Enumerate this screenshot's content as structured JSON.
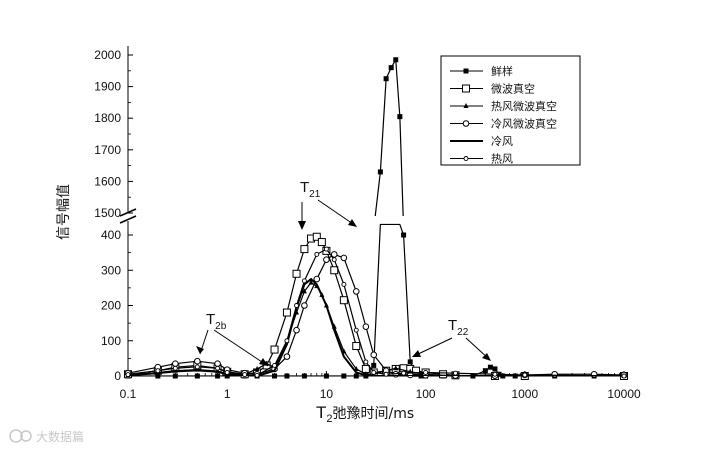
{
  "chart_data": {
    "type": "line",
    "xlabel_main": "T",
    "xlabel_sub": "2",
    "xlabel_rest": "弛豫时间/ms",
    "ylabel": "信号幅值",
    "x_scale": "log",
    "xlim": [
      0.1,
      10000
    ],
    "x_ticks": [
      "0.1",
      "1",
      "10",
      "100",
      "1000",
      "10000"
    ],
    "y_axis_break": true,
    "ylim_lower": [
      0,
      450
    ],
    "ylim_upper": [
      1500,
      2000
    ],
    "y_ticks_lower": [
      "0",
      "100",
      "200",
      "300",
      "400"
    ],
    "y_ticks_upper": [
      "1500",
      "1600",
      "1700",
      "1800",
      "1900",
      "2000"
    ],
    "legend_position": "top-right",
    "annotations": [
      {
        "label": "T",
        "sub": "2b"
      },
      {
        "label": "T",
        "sub": "21"
      },
      {
        "label": "T",
        "sub": "22"
      }
    ],
    "series": [
      {
        "name": "鲜样",
        "marker": "filled-square",
        "x": [
          0.1,
          0.2,
          0.3,
          0.5,
          0.8,
          1,
          1.5,
          2,
          3,
          4,
          6,
          10,
          15,
          20,
          25,
          30,
          35,
          40,
          45,
          50,
          55,
          60,
          70,
          80,
          90,
          100,
          150,
          200,
          300,
          400,
          450,
          500,
          550,
          600,
          800,
          1000,
          2000,
          5000,
          10000
        ],
        "y": [
          0,
          0,
          0,
          0,
          0,
          0,
          0,
          0,
          0,
          0,
          0,
          0,
          0,
          0,
          0,
          30,
          1630,
          1925,
          1960,
          1985,
          1805,
          400,
          40,
          5,
          0,
          0,
          0,
          0,
          0,
          15,
          25,
          20,
          5,
          0,
          0,
          0,
          0,
          0,
          0
        ]
      },
      {
        "name": "微波真空",
        "marker": "open-square",
        "x": [
          0.1,
          0.2,
          0.3,
          0.5,
          0.8,
          1,
          1.5,
          2,
          2.5,
          3,
          4,
          5,
          6,
          7,
          8,
          9,
          10,
          12,
          15,
          20,
          25,
          30,
          40,
          50,
          60,
          70,
          80,
          100,
          150,
          200,
          500,
          1000,
          10000
        ],
        "y": [
          5,
          15,
          25,
          30,
          22,
          12,
          5,
          10,
          30,
          75,
          180,
          290,
          360,
          390,
          395,
          380,
          355,
          300,
          215,
          85,
          20,
          10,
          15,
          20,
          22,
          20,
          15,
          10,
          5,
          2,
          0,
          0,
          0
        ]
      },
      {
        "name": "热风微波真空",
        "marker": "triangle",
        "x": [
          0.1,
          0.2,
          0.3,
          0.5,
          0.8,
          1,
          1.5,
          2,
          2.5,
          3,
          4,
          5,
          6,
          7,
          8,
          9,
          10,
          12,
          15,
          20,
          25,
          30,
          40,
          50,
          70,
          100,
          200,
          10000
        ],
        "y": [
          3,
          10,
          15,
          18,
          14,
          6,
          5,
          20,
          35,
          25,
          100,
          180,
          240,
          265,
          255,
          230,
          200,
          140,
          70,
          20,
          5,
          5,
          15,
          22,
          12,
          5,
          0,
          0
        ]
      },
      {
        "name": "冷风微波真空",
        "marker": "open-circle",
        "x": [
          0.1,
          0.2,
          0.3,
          0.5,
          0.8,
          1,
          1.5,
          2,
          3,
          4,
          5,
          6,
          8,
          10,
          12,
          15,
          20,
          25,
          30,
          40,
          50,
          70,
          100,
          200,
          500,
          1000,
          2000,
          5000,
          10000
        ],
        "y": [
          8,
          25,
          35,
          42,
          35,
          18,
          8,
          5,
          20,
          55,
          130,
          200,
          275,
          330,
          345,
          335,
          240,
          140,
          60,
          15,
          5,
          3,
          2,
          1,
          1,
          3,
          5,
          5,
          3
        ]
      },
      {
        "name": "冷风",
        "marker": "none",
        "x": [
          0.1,
          0.2,
          0.3,
          0.5,
          0.8,
          1,
          1.5,
          2,
          3,
          4,
          5,
          6,
          7,
          8,
          10,
          12,
          15,
          20,
          25,
          30,
          40,
          50,
          70,
          100,
          200,
          10000
        ],
        "y": [
          2,
          8,
          13,
          16,
          12,
          5,
          2,
          0,
          15,
          90,
          195,
          260,
          275,
          260,
          200,
          130,
          55,
          10,
          2,
          0,
          0,
          0,
          0,
          0,
          0,
          0
        ]
      },
      {
        "name": "热风",
        "marker": "small-open-circle",
        "x": [
          0.1,
          0.2,
          0.3,
          0.5,
          0.8,
          1,
          1.5,
          2,
          3,
          4,
          5,
          6,
          8,
          10,
          12,
          15,
          20,
          25,
          30,
          40,
          60,
          100,
          200,
          500,
          1000,
          10000
        ],
        "y": [
          4,
          15,
          22,
          26,
          22,
          10,
          4,
          2,
          30,
          100,
          200,
          270,
          345,
          360,
          330,
          260,
          130,
          40,
          10,
          5,
          8,
          10,
          8,
          5,
          3,
          0
        ]
      }
    ]
  },
  "watermark": "大数据篇"
}
